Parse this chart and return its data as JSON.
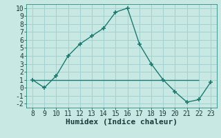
{
  "x": [
    8,
    9,
    10,
    11,
    12,
    13,
    14,
    15,
    16,
    17,
    18,
    19,
    20,
    21,
    22,
    23
  ],
  "y": [
    1,
    0,
    1.5,
    4,
    5.5,
    6.5,
    7.5,
    9.5,
    10,
    5.5,
    3,
    1,
    -0.5,
    -1.8,
    -1.5,
    0.7
  ],
  "hline_y": 1,
  "hline_x_start": 8,
  "hline_x_end": 22,
  "line_color": "#1a7a6e",
  "bg_color": "#c8e8e4",
  "grid_color": "#9ecece",
  "xlabel": "Humidex (Indice chaleur)",
  "xlim": [
    7.5,
    23.5
  ],
  "ylim": [
    -2.5,
    10.5
  ],
  "yticks": [
    -2,
    -1,
    0,
    1,
    2,
    3,
    4,
    5,
    6,
    7,
    8,
    9,
    10
  ],
  "xticks": [
    8,
    9,
    10,
    11,
    12,
    13,
    14,
    15,
    16,
    17,
    18,
    19,
    20,
    21,
    22,
    23
  ],
  "tick_fontsize": 7,
  "xlabel_fontsize": 8
}
